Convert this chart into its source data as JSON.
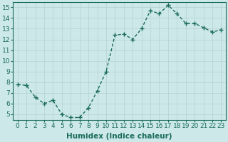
{
  "x": [
    0,
    1,
    2,
    3,
    4,
    5,
    6,
    7,
    8,
    9,
    10,
    11,
    12,
    13,
    14,
    15,
    16,
    17,
    18,
    19,
    20,
    21,
    22,
    23
  ],
  "y": [
    7.8,
    7.7,
    6.6,
    6.0,
    6.3,
    5.0,
    4.7,
    4.7,
    5.6,
    7.2,
    9.0,
    12.4,
    12.5,
    12.0,
    13.0,
    14.7,
    14.4,
    15.2,
    14.4,
    13.5,
    13.5,
    13.1,
    12.7,
    12.9
  ],
  "line_color": "#1a6b5a",
  "marker": "+",
  "marker_size": 4,
  "line_width": 1.0,
  "bg_color": "#cce8e8",
  "grid_color": "#b8d4d4",
  "xlabel": "Humidex (Indice chaleur)",
  "ylim": [
    4.5,
    15.5
  ],
  "xlim": [
    -0.5,
    23.5
  ],
  "yticks": [
    5,
    6,
    7,
    8,
    9,
    10,
    11,
    12,
    13,
    14,
    15
  ],
  "xticks": [
    0,
    1,
    2,
    3,
    4,
    5,
    6,
    7,
    8,
    9,
    10,
    11,
    12,
    13,
    14,
    15,
    16,
    17,
    18,
    19,
    20,
    21,
    22,
    23
  ],
  "tick_fontsize": 6.5,
  "xlabel_fontsize": 7.5
}
